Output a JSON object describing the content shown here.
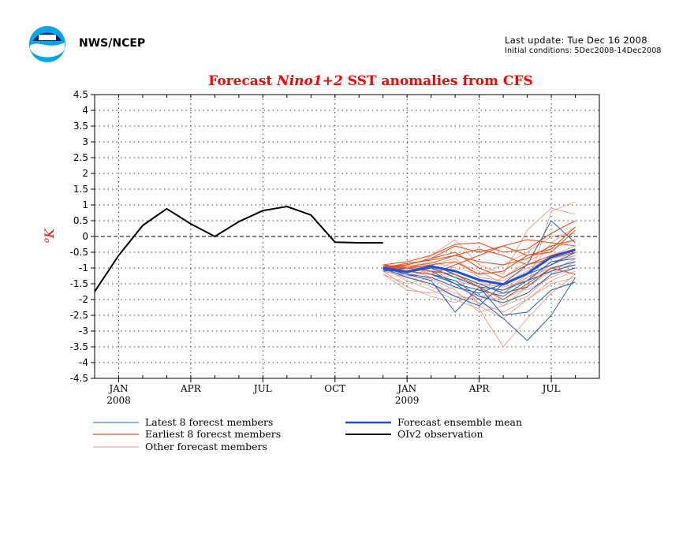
{
  "header": {
    "org": "NWS/NCEP",
    "last_update": "Last update: Tue Dec 16 2008",
    "initial_conditions": "Initial conditions: 5Dec2008-14Dec2008"
  },
  "colors": {
    "title": "#ff0000",
    "latest": "#1f5fbf",
    "earliest": "#e8501a",
    "other": "#e89a88",
    "mean": "#1e4fe6",
    "obs": "#000000"
  },
  "chart_data": {
    "type": "line",
    "title_prefix": "Forecast ",
    "title_italic": "Nino1+2",
    "title_suffix": " SST anomalies from CFS",
    "ylabel": "oK",
    "ylim": [
      -4.5,
      4.5
    ],
    "yticks": [
      "4.5",
      "4",
      "3.5",
      "3",
      "2.5",
      "2",
      "1.5",
      "1",
      "0.5",
      "0",
      "-0.5",
      "-1",
      "-1.5",
      "-2",
      "-2.5",
      "-3",
      "-3.5",
      "-4",
      "-4.5"
    ],
    "xlim": [
      -1,
      20
    ],
    "xticks": [
      {
        "x": 0,
        "label": "JAN",
        "sub": "2008"
      },
      {
        "x": 3,
        "label": "APR",
        "sub": ""
      },
      {
        "x": 6,
        "label": "JUL",
        "sub": ""
      },
      {
        "x": 9,
        "label": "OCT",
        "sub": ""
      },
      {
        "x": 12,
        "label": "JAN",
        "sub": "2009"
      },
      {
        "x": 15,
        "label": "APR",
        "sub": ""
      },
      {
        "x": 18,
        "label": "JUL",
        "sub": ""
      }
    ],
    "grid": true,
    "legend": [
      {
        "label": "Latest 8 forecst members",
        "key": "latest"
      },
      {
        "label": "Earliest 8 forecst members",
        "key": "earliest"
      },
      {
        "label": "Other forecast members",
        "key": "other"
      },
      {
        "label": "Forecast ensemble mean",
        "key": "mean"
      },
      {
        "label": "OIv2 observation",
        "key": "obs"
      }
    ],
    "observation": {
      "x": [
        -1,
        0,
        1,
        2,
        3,
        4,
        5,
        6,
        7,
        8,
        9,
        10,
        11
      ],
      "y": [
        -1.75,
        -0.6,
        0.35,
        0.88,
        0.4,
        0.0,
        0.47,
        0.82,
        0.95,
        0.68,
        -0.18,
        -0.2,
        -0.2
      ]
    },
    "forecast_x": [
      11,
      12,
      13,
      14,
      15,
      16,
      17,
      18,
      19
    ],
    "mean": [
      -1.0,
      -1.12,
      -0.95,
      -1.1,
      -1.38,
      -1.52,
      -1.18,
      -0.65,
      -0.42
    ],
    "latest": [
      [
        -1.0,
        -1.2,
        -1.4,
        -2.4,
        -1.6,
        -2.5,
        -2.4,
        -1.7,
        -1.45
      ],
      [
        -1.05,
        -1.1,
        -1.2,
        -1.5,
        -2.0,
        -2.6,
        -3.3,
        -2.5,
        -1.3
      ],
      [
        -1.0,
        -1.3,
        -1.5,
        -1.9,
        -2.2,
        -1.5,
        -0.9,
        0.5,
        -0.2
      ],
      [
        -1.1,
        -1.0,
        -1.1,
        -1.5,
        -1.7,
        -1.9,
        -1.4,
        -0.8,
        -0.7
      ],
      [
        -0.95,
        -1.0,
        -0.9,
        -1.2,
        -1.5,
        -1.8,
        -1.6,
        -1.0,
        -0.8
      ],
      [
        -1.0,
        -1.2,
        -1.3,
        -1.6,
        -1.8,
        -1.5,
        -1.2,
        -0.9,
        -0.5
      ],
      [
        -1.0,
        -1.1,
        -1.2,
        -1.4,
        -1.9,
        -2.1,
        -1.8,
        -1.2,
        -1.0
      ],
      [
        -1.05,
        -1.15,
        -1.0,
        -1.3,
        -1.6,
        -1.7,
        -1.4,
        -1.1,
        -0.9
      ]
    ],
    "earliest": [
      [
        -0.95,
        -0.9,
        -0.7,
        -0.3,
        -0.5,
        -0.3,
        -0.6,
        -0.4,
        0.3
      ],
      [
        -1.0,
        -0.95,
        -0.85,
        -0.6,
        -0.8,
        -0.9,
        -0.7,
        -0.3,
        -0.1
      ],
      [
        -0.9,
        -0.8,
        -0.6,
        -0.25,
        -0.2,
        -0.5,
        -0.4,
        0.1,
        0.5
      ],
      [
        -1.0,
        -1.0,
        -0.9,
        -0.8,
        -1.2,
        -1.1,
        -0.6,
        -0.5,
        0.2
      ],
      [
        -0.95,
        -1.1,
        -1.2,
        -0.9,
        -0.6,
        -0.3,
        -0.1,
        -0.2,
        -0.3
      ],
      [
        -1.0,
        -0.9,
        -0.7,
        -0.5,
        -1.0,
        -1.3,
        -0.9,
        -0.7,
        -0.5
      ],
      [
        -0.9,
        -1.0,
        -1.1,
        -1.2,
        -1.6,
        -2.0,
        -1.5,
        -1.0,
        -1.2
      ],
      [
        -1.0,
        -0.85,
        -0.75,
        -0.6,
        -0.4,
        -0.6,
        -0.9,
        -0.6,
        -0.4
      ]
    ],
    "others": [
      [
        -1.1,
        -1.3,
        -1.5,
        -1.8,
        -2.1,
        -2.4,
        -2.0,
        -1.4,
        -1.1
      ],
      [
        -1.0,
        -1.4,
        -1.7,
        -2.0,
        -2.3,
        -3.5,
        -2.6,
        -1.8,
        -1.2
      ],
      [
        -1.2,
        -1.5,
        -1.3,
        -1.6,
        -1.9,
        -2.0,
        -1.6,
        0.8,
        1.1
      ],
      [
        -0.9,
        -1.1,
        -0.6,
        -0.1,
        -0.9,
        -1.2,
        0.2,
        0.9,
        0.7
      ],
      [
        -1.0,
        -1.2,
        -1.6,
        -1.9,
        -2.0,
        -1.7,
        -1.3,
        -0.9,
        -0.6
      ],
      [
        -1.1,
        -1.6,
        -1.9,
        -2.1,
        -1.8,
        -1.5,
        -1.1,
        -0.6,
        -0.3
      ],
      [
        -0.95,
        -1.05,
        -1.3,
        -1.1,
        -1.4,
        -1.8,
        -1.2,
        -0.2,
        0.3
      ],
      [
        -1.0,
        -1.3,
        -1.0,
        -1.5,
        -1.7,
        -1.3,
        -0.8,
        -0.4,
        -0.1
      ],
      [
        -1.1,
        -1.2,
        -1.4,
        -1.2,
        -2.2,
        -2.6,
        -2.0,
        -1.5,
        -1.3
      ],
      [
        -1.0,
        -1.1,
        -0.9,
        -0.7,
        -1.3,
        -1.4,
        -1.0,
        -0.8,
        -0.6
      ],
      [
        -1.2,
        -1.7,
        -1.8,
        -1.6,
        -1.9,
        -1.8,
        -1.3,
        -1.0,
        -0.9
      ],
      [
        -1.0,
        -0.9,
        -1.2,
        -1.4,
        -1.6,
        -2.2,
        -1.9,
        -1.2,
        -0.8
      ],
      [
        -1.05,
        -1.25,
        -1.1,
        -0.8,
        -1.1,
        -1.5,
        -1.7,
        -1.3,
        -1.0
      ],
      [
        -0.9,
        -1.0,
        -0.8,
        -1.0,
        -1.2,
        -0.9,
        -0.5,
        0.0,
        0.1
      ],
      [
        -1.0,
        -1.15,
        -1.35,
        -1.7,
        -2.4,
        -2.2,
        -1.6,
        -1.1,
        -0.7
      ],
      [
        -1.1,
        -1.0,
        -0.95,
        -1.3,
        -1.5,
        -1.6,
        -1.4,
        -0.9,
        -0.4
      ]
    ]
  }
}
